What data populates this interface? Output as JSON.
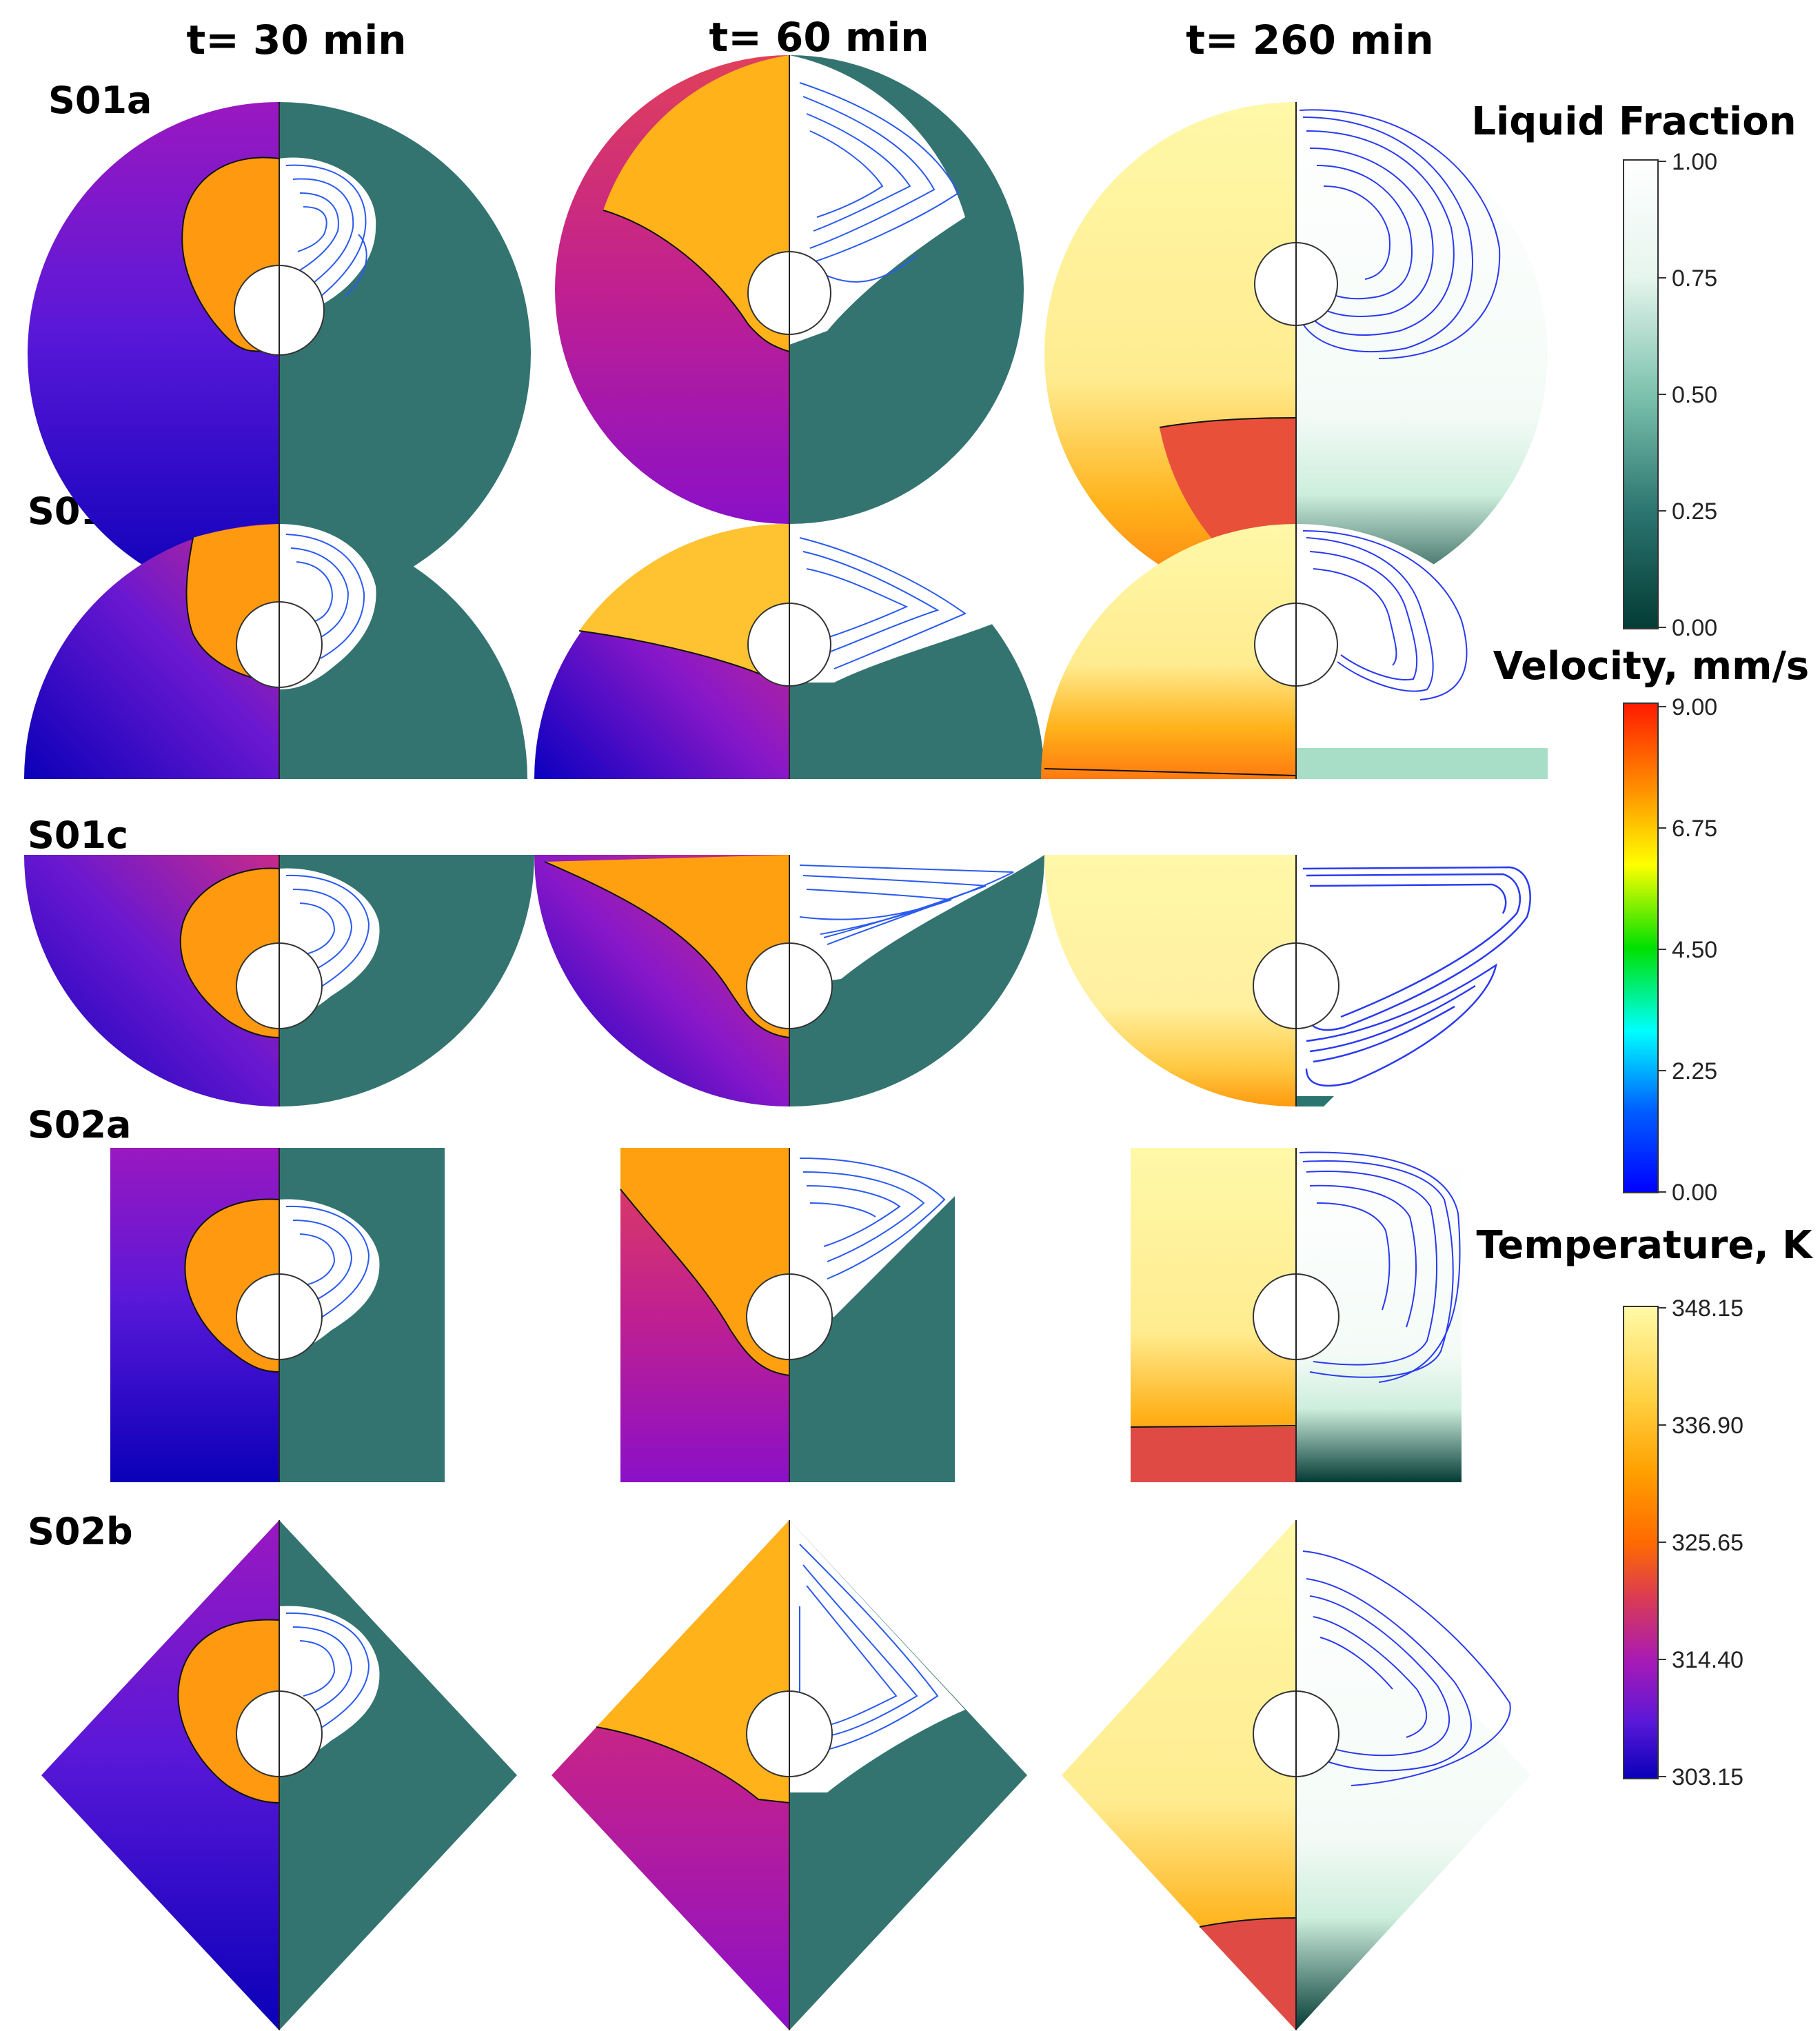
{
  "column_headers": [
    "t= 30 min",
    "t= 60 min",
    "t= 260 min"
  ],
  "row_labels": [
    "S01a",
    "S01b",
    "S01c",
    "S02a",
    "S02b"
  ],
  "legends": {
    "liquid_fraction": {
      "title": "Liquid Fraction",
      "ticks": [
        "1.00",
        "0.75",
        "0.50",
        "0.25",
        "0.00"
      ],
      "colors": [
        "#ffffff",
        "#e6f5ee",
        "#7cc2ad",
        "#2b7570",
        "#043b35"
      ]
    },
    "velocity": {
      "title": "Velocity, mm/s",
      "ticks": [
        "9.00",
        "6.75",
        "4.50",
        "2.25",
        "0.00"
      ],
      "colors": [
        "#ff1a00",
        "#ff8c00",
        "#ffff00",
        "#00e000",
        "#00ffff",
        "#0040ff",
        "#0000ff"
      ]
    },
    "temperature": {
      "title": "Temperature, K",
      "ticks": [
        "348.15",
        "336.90",
        "325.65",
        "314.40",
        "303.15"
      ],
      "colors": [
        "#fffaa8",
        "#ffb300",
        "#ff6a00",
        "#d93a55",
        "#a81ab5",
        "#5a18d8",
        "#0a00b8"
      ]
    }
  },
  "palette": {
    "solid_pcm": "#337470",
    "hot": "#ffb21a",
    "warm_melt": "#ffd24a",
    "hottest": "#fff3a0",
    "mid": "#d5306a",
    "cold": "#3d10d0",
    "coldest": "#0a00b8",
    "streamline": "#1a2cf0",
    "streamline_fast": "#25c8f0"
  }
}
